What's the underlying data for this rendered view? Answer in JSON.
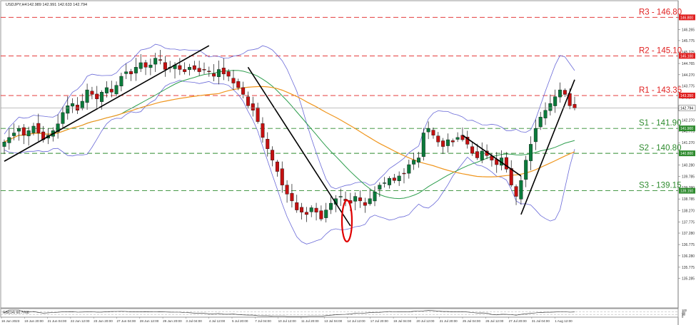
{
  "header": {
    "symbol": "USDJPY,H4",
    "ohlc": "142.989 142.991 142.633 142.794"
  },
  "chart_data": {
    "type": "candlestick",
    "y_range": [
      135.3,
      147.0
    ],
    "y_ticks": [
      146.8,
      146.265,
      145.775,
      145.275,
      144.765,
      144.27,
      143.775,
      143.27,
      142.765,
      142.27,
      141.775,
      141.27,
      140.775,
      140.28,
      139.785,
      139.29,
      138.785,
      138.27,
      137.775,
      137.28,
      136.775,
      136.28,
      135.775,
      135.285
    ],
    "y_tick_labels": [
      "146.800",
      "146.265",
      "145.775",
      "145.275",
      "144.765",
      "144.270",
      "143.775",
      "143.270",
      "142.765",
      "142.270",
      "141.775",
      "141.270",
      "140.775",
      "140.280",
      "139.785",
      "139.290",
      "138.785",
      "138.270",
      "137.775",
      "137.280",
      "136.775",
      "136.280",
      "135.775",
      "135.285"
    ],
    "x_tick_labels": [
      "16 Jun 2023",
      "19 Jun 20:00",
      "21 Jun 04:00",
      "22 Jun 12:00",
      "23 Jun 20:00",
      "27 Jun 04:00",
      "28 Jun 12:00",
      "29 Jun 20:00",
      "3 Jul 04:00",
      "4 Jul 12:00",
      "5 Jul 20:00",
      "7 Jul 04:00",
      "10 Jul 12:00",
      "11 Jul 20:00",
      "13 Jul 04:00",
      "14 Jul 12:00",
      "17 Jul 20:00",
      "19 Jul 04:00",
      "20 Jul 12:00",
      "21 Jul 20:00",
      "25 Jul 04:00",
      "26 Jul 12:00",
      "27 Jul 20:00",
      "31 Jul 04:00",
      "1 Aug 12:00"
    ],
    "levels": [
      {
        "label": "R3 - 146.80",
        "value": 146.8,
        "tag": "146.800",
        "color": "#e02020"
      },
      {
        "label": "R2 - 145.10",
        "value": 145.1,
        "tag": "145.100",
        "color": "#e02020"
      },
      {
        "label": "R1 - 143.35",
        "value": 143.35,
        "tag": "143.350",
        "color": "#e02020"
      },
      {
        "label": "S1 - 141.90",
        "value": 141.9,
        "tag": "141.900",
        "color": "#2e8b2e"
      },
      {
        "label": "S2 - 140.80",
        "value": 140.8,
        "tag": "140.800",
        "color": "#2e8b2e"
      },
      {
        "label": "S3 - 139.15",
        "value": 139.15,
        "tag": "139.150",
        "color": "#2e8b2e"
      }
    ],
    "current_price": {
      "value": 142.794,
      "tag": "142.794"
    },
    "close_path": [
      141.3,
      141.5,
      141.7,
      141.9,
      141.6,
      141.8,
      142.0,
      141.7,
      141.4,
      141.6,
      141.8,
      142.1,
      142.6,
      142.9,
      143.0,
      142.7,
      143.1,
      143.6,
      143.4,
      143.2,
      143.5,
      143.7,
      143.5,
      143.8,
      144.2,
      144.4,
      144.3,
      144.6,
      144.8,
      144.6,
      144.7,
      145.0,
      144.9,
      144.5,
      144.6,
      144.7,
      144.5,
      144.4,
      144.6,
      144.5,
      144.4,
      144.5,
      144.4,
      144.2,
      144.5,
      144.3,
      144.2,
      143.9,
      143.7,
      143.4,
      142.9,
      142.7,
      142.2,
      141.5,
      141.0,
      140.5,
      140.0,
      139.4,
      139.0,
      138.7,
      138.3,
      138.2,
      138.1,
      138.4,
      138.2,
      137.9,
      138.3,
      138.6,
      138.8,
      138.9,
      138.7,
      138.6,
      138.9,
      138.7,
      138.5,
      138.8,
      139.1,
      139.4,
      139.5,
      139.7,
      139.6,
      139.8,
      139.9,
      140.3,
      140.5,
      140.6,
      141.7,
      141.9,
      141.6,
      141.3,
      141.1,
      141.4,
      141.3,
      141.5,
      141.4,
      141.2,
      140.8,
      140.6,
      140.9,
      140.7,
      140.5,
      140.3,
      140.6,
      140.1,
      139.4,
      138.9,
      139.6,
      140.5,
      141.2,
      141.9,
      142.4,
      142.7,
      143.0,
      143.3,
      143.6,
      143.4,
      142.9,
      142.8
    ],
    "rsi": {
      "label": "RSI(14) 60.7768",
      "levels": [
        100,
        70,
        50,
        30,
        0
      ],
      "tick_labels": [
        "100",
        "70",
        "50",
        "30",
        "0"
      ]
    }
  }
}
